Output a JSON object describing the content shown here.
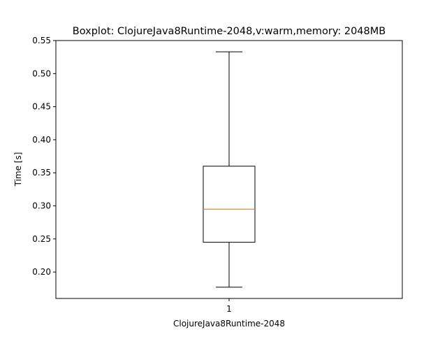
{
  "chart_data": {
    "type": "boxplot",
    "title": "Boxplot: ClojureJava8Runtime-2048,v:warm,memory: 2048MB",
    "xlabel": "ClojureJava8Runtime-2048",
    "ylabel": "Time [s]",
    "categories": [
      "1"
    ],
    "ylim": [
      0.16,
      0.55
    ],
    "yticks": [
      0.2,
      0.25,
      0.3,
      0.35,
      0.4,
      0.45,
      0.5,
      0.55
    ],
    "ytick_labels": [
      "0.20",
      "0.25",
      "0.30",
      "0.35",
      "0.40",
      "0.45",
      "0.50",
      "0.55"
    ],
    "boxes": [
      {
        "category": "1",
        "whisker_low": 0.177,
        "q1": 0.245,
        "median": 0.295,
        "q3": 0.36,
        "whisker_high": 0.533
      }
    ],
    "grid": false,
    "colors": {
      "box": "#000000",
      "median": "#ff7f0e",
      "axes": "#000000"
    }
  }
}
